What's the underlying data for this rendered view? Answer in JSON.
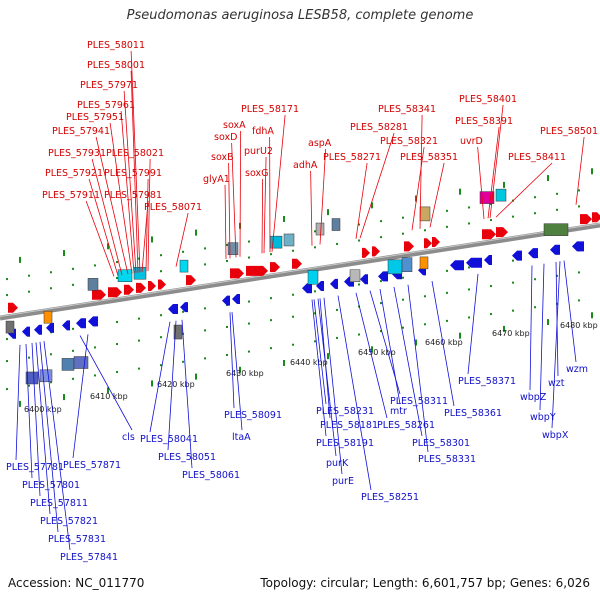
{
  "title": "Pseudomonas aeruginosa LESB58, complete genome",
  "footer": {
    "accession": "Accession: NC_011770",
    "summary": "Topology: circular; Length: 6,601,757 bp; Genes: 6,026"
  },
  "colors": {
    "forward": "#e8000b",
    "reverse": "#1010d8",
    "backbone": "#8c8c8c",
    "ticks": "#1a8a1a"
  },
  "scale_labels": [
    "6400 kbp",
    "6410 kbp",
    "6420 kbp",
    "6430 kbp",
    "6440 kbp",
    "6450 kbp",
    "6460 kbp",
    "6470 kbp",
    "6480 kbp"
  ],
  "forward_genes": [
    "PLES_58011",
    "PLES_58001",
    "PLES_57971",
    "PLES_57961",
    "PLES_57951",
    "PLES_57941",
    "PLES_57931",
    "PLES_58021",
    "PLES_57921",
    "PLES_57991",
    "PLES_57911",
    "PLES_57981",
    "PLES_58071",
    "PLES_58171",
    "soxA",
    "fdhA",
    "soxD",
    "purU2",
    "soxB",
    "soxG",
    "glyA1",
    "PLES_58281",
    "aspA",
    "PLES_58271",
    "adhA",
    "PLES_58341",
    "PLES_58321",
    "PLES_58351",
    "PLES_58401",
    "PLES_58391",
    "uvrD",
    "PLES_58411",
    "PLES_58501"
  ],
  "reverse_genes": [
    "cls",
    "PLES_57781",
    "PLES_57871",
    "PLES_57801",
    "PLES_57811",
    "PLES_57821",
    "PLES_57831",
    "PLES_57841",
    "PLES_58041",
    "PLES_58051",
    "PLES_58061",
    "ltaA",
    "PLES_58091",
    "PLES_58231",
    "PLES_58181",
    "PLES_58191",
    "purK",
    "purE",
    "PLES_58251",
    "PLES_58261",
    "mtr",
    "PLES_58311",
    "PLES_58301",
    "PLES_58331",
    "PLES_58361",
    "PLES_58371",
    "wbpZ",
    "wzt",
    "wzm",
    "wbpY",
    "wbpX"
  ]
}
